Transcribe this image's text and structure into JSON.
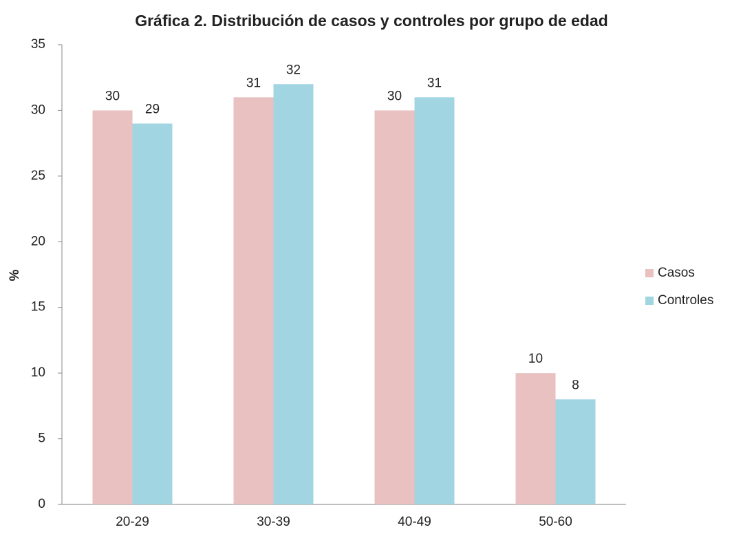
{
  "chart_data": {
    "type": "bar",
    "title": "Gráfica 2. Distribución de casos y controles por grupo de edad",
    "y_label": "%",
    "categories": [
      "20-29",
      "30-39",
      "40-49",
      "50-60"
    ],
    "series": [
      {
        "name": "Casos",
        "color": "#e8c1c0",
        "values": [
          30,
          31,
          30,
          10
        ]
      },
      {
        "name": "Controles",
        "color": "#a0d5e1",
        "values": [
          29,
          32,
          31,
          8
        ]
      }
    ],
    "ylim": [
      0,
      35
    ],
    "yticks": [
      0,
      5,
      10,
      15,
      20,
      25,
      30,
      35
    ],
    "grid": false,
    "legend": "right"
  }
}
